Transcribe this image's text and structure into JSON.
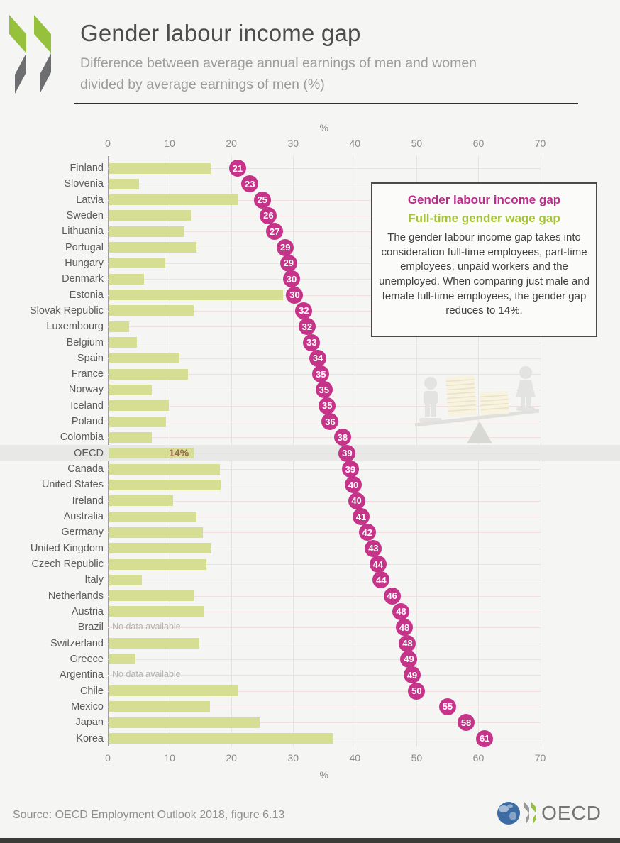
{
  "page": {
    "background": "#f5f5f3"
  },
  "header": {
    "title": "Gender labour income gap",
    "subtitle_line1": "Difference between average annual earnings of men and women",
    "subtitle_line2": "divided by average earnings of men (%)"
  },
  "axis": {
    "unit_label": "%"
  },
  "chart_data": {
    "type": "bar",
    "orientation": "horizontal",
    "xlim": [
      0,
      70
    ],
    "x_ticks": [
      0,
      10,
      20,
      30,
      40,
      50,
      60,
      70
    ],
    "grid": true,
    "categories": [
      "Finland",
      "Slovenia",
      "Latvia",
      "Sweden",
      "Lithuania",
      "Portugal",
      "Hungary",
      "Denmark",
      "Estonia",
      "Slovak Republic",
      "Luxembourg",
      "Belgium",
      "Spain",
      "France",
      "Norway",
      "Iceland",
      "Poland",
      "Colombia",
      "OECD",
      "Canada",
      "United States",
      "Ireland",
      "Australia",
      "Germany",
      "United Kingdom",
      "Czech Republic",
      "Italy",
      "Netherlands",
      "Austria",
      "Brazil",
      "Switzerland",
      "Greece",
      "Argentina",
      "Chile",
      "Mexico",
      "Japan",
      "Korea"
    ],
    "series": [
      {
        "name": "Gender labour income gap",
        "style": "circle-marker",
        "color": "#c6348a",
        "values": [
          21,
          23,
          25,
          26,
          27,
          29,
          29,
          30,
          30,
          32,
          32,
          33,
          34,
          35,
          35,
          35,
          36,
          38,
          39,
          39,
          40,
          40,
          41,
          42,
          43,
          44,
          44,
          46,
          48,
          48,
          48,
          49,
          49,
          50,
          55,
          58,
          61
        ]
      },
      {
        "name": "Full-time gender wage gap",
        "style": "bar",
        "color": "#d6de94",
        "values": [
          16.5,
          4.9,
          21,
          13.3,
          12.3,
          14.2,
          9.2,
          5.7,
          28.2,
          13.8,
          3.3,
          4.6,
          11.5,
          12.9,
          7,
          9.8,
          9.3,
          7,
          13.8,
          18,
          18.1,
          10.5,
          14.2,
          15.3,
          16.7,
          15.9,
          5.4,
          13.9,
          15.5,
          null,
          14.7,
          4.4,
          null,
          21,
          16.4,
          24.5,
          36.4
        ]
      }
    ],
    "no_data_label": "No data available",
    "highlight_row": "OECD",
    "highlight_bar_label": "14%"
  },
  "legend_box": {
    "title_income_gap": "Gender labour income gap",
    "title_wage_gap": "Full-time gender wage gap",
    "description": "The gender labour income gap takes into consideration full-time employees, part-time employees, unpaid workers and the unemployed. When comparing just male and female full-time employees, the gender gap reduces to 14%."
  },
  "footer": {
    "source": "Source: OECD Employment Outlook 2018, figure 6.13",
    "logo_text": "OECD"
  },
  "colors": {
    "bar_green": "#d6de94",
    "marker_pink": "#c6348a",
    "legend_title_pink": "#bf2b8b",
    "legend_title_green": "#a6c23c",
    "logo_green": "#95c13d",
    "logo_gray": "#6d6e71",
    "highlight_band": "#e8e8e6",
    "row_line": "#f1dede",
    "gridline": "#e3e3e1",
    "bottom_bar": "#3b3b37"
  }
}
